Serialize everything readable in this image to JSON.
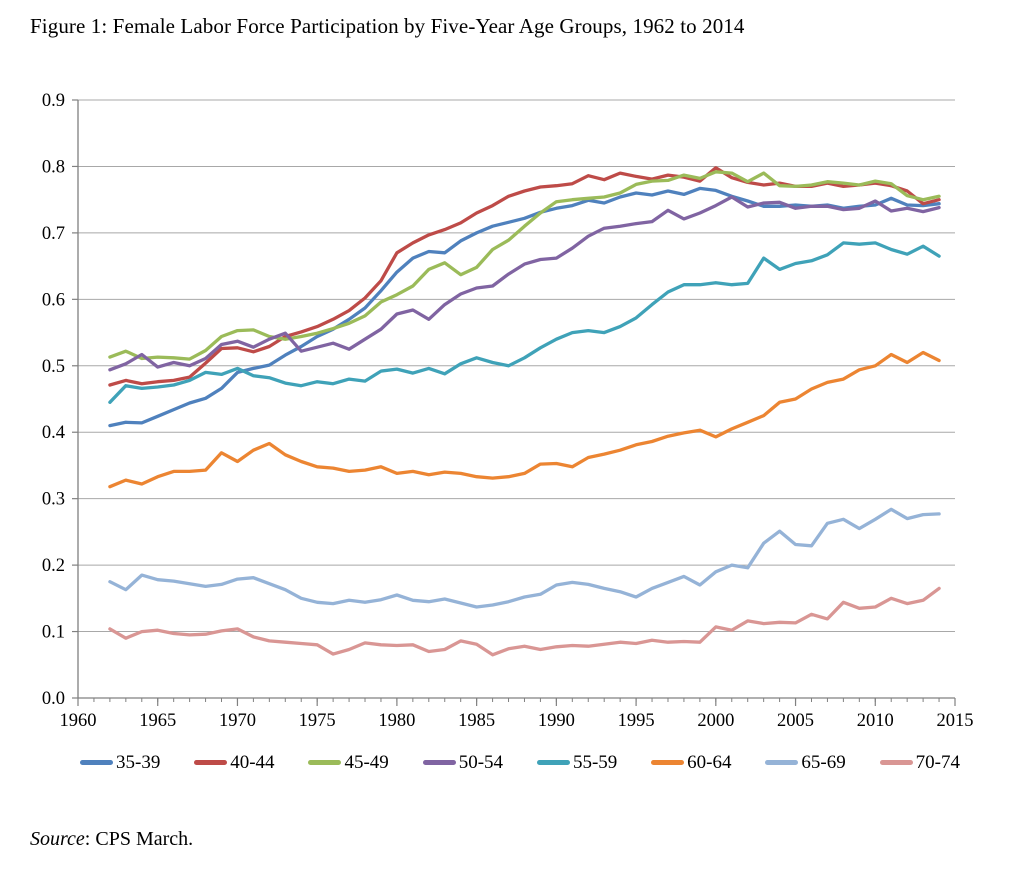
{
  "title": "Figure 1: Female Labor Force Participation by Five-Year Age Groups, 1962 to 2014",
  "source": {
    "italic": "Source",
    "rest": ": CPS March."
  },
  "chart_data": {
    "type": "line",
    "title": "Figure 1: Female Labor Force Participation by Five-Year Age Groups, 1962 to 2014",
    "xlabel": "",
    "ylabel": "",
    "xlim": [
      1960,
      2015
    ],
    "ylim": [
      0.0,
      0.9
    ],
    "x_major_ticks": [
      1960,
      1965,
      1970,
      1975,
      1980,
      1985,
      1990,
      1995,
      2000,
      2005,
      2010,
      2015
    ],
    "x_tick_labels": [
      "1960",
      "1965",
      "1970",
      "1975",
      "1980",
      "1985",
      "1990",
      "1995",
      "2000",
      "2005",
      "2010",
      "2015"
    ],
    "x_minor_tick_step": 1,
    "y_ticks": [
      0.0,
      0.1,
      0.2,
      0.3,
      0.4,
      0.5,
      0.6,
      0.7,
      0.8,
      0.9
    ],
    "y_tick_labels": [
      "0.0",
      "0.1",
      "0.2",
      "0.3",
      "0.4",
      "0.5",
      "0.6",
      "0.7",
      "0.8",
      "0.9"
    ],
    "grid": true,
    "legend_position": "bottom",
    "grid_color": "#A8A8A8",
    "axis_color": "#808080",
    "x": [
      1962,
      1963,
      1964,
      1965,
      1966,
      1967,
      1968,
      1969,
      1970,
      1971,
      1972,
      1973,
      1974,
      1975,
      1976,
      1977,
      1978,
      1979,
      1980,
      1981,
      1982,
      1983,
      1984,
      1985,
      1986,
      1987,
      1988,
      1989,
      1990,
      1991,
      1992,
      1993,
      1994,
      1995,
      1996,
      1997,
      1998,
      1999,
      2000,
      2001,
      2002,
      2003,
      2004,
      2005,
      2006,
      2007,
      2008,
      2009,
      2010,
      2011,
      2012,
      2013,
      2014
    ],
    "series": [
      {
        "name": "35-39",
        "color": "#4F81BD",
        "values": [
          0.41,
          0.415,
          0.414,
          0.424,
          0.434,
          0.444,
          0.451,
          0.466,
          0.49,
          0.496,
          0.501,
          0.516,
          0.529,
          0.544,
          0.555,
          0.57,
          0.587,
          0.613,
          0.641,
          0.662,
          0.672,
          0.67,
          0.688,
          0.7,
          0.71,
          0.716,
          0.722,
          0.731,
          0.737,
          0.741,
          0.749,
          0.745,
          0.754,
          0.76,
          0.757,
          0.763,
          0.758,
          0.767,
          0.764,
          0.755,
          0.748,
          0.74,
          0.74,
          0.742,
          0.74,
          0.742,
          0.737,
          0.74,
          0.742,
          0.752,
          0.742,
          0.741,
          0.744
        ]
      },
      {
        "name": "40-44",
        "color": "#BE4B48",
        "values": [
          0.471,
          0.478,
          0.473,
          0.476,
          0.478,
          0.483,
          0.504,
          0.526,
          0.527,
          0.521,
          0.529,
          0.544,
          0.551,
          0.559,
          0.57,
          0.583,
          0.602,
          0.628,
          0.67,
          0.685,
          0.697,
          0.705,
          0.715,
          0.73,
          0.741,
          0.755,
          0.763,
          0.769,
          0.771,
          0.774,
          0.786,
          0.78,
          0.79,
          0.785,
          0.781,
          0.787,
          0.784,
          0.778,
          0.798,
          0.783,
          0.776,
          0.772,
          0.775,
          0.77,
          0.77,
          0.775,
          0.77,
          0.772,
          0.775,
          0.771,
          0.763,
          0.744,
          0.75
        ]
      },
      {
        "name": "45-49",
        "color": "#9BBB59",
        "values": [
          0.513,
          0.522,
          0.511,
          0.513,
          0.512,
          0.51,
          0.523,
          0.544,
          0.553,
          0.554,
          0.544,
          0.54,
          0.544,
          0.549,
          0.556,
          0.564,
          0.575,
          0.596,
          0.607,
          0.62,
          0.645,
          0.655,
          0.637,
          0.648,
          0.675,
          0.689,
          0.71,
          0.73,
          0.747,
          0.75,
          0.752,
          0.754,
          0.76,
          0.773,
          0.778,
          0.779,
          0.787,
          0.782,
          0.792,
          0.79,
          0.777,
          0.79,
          0.771,
          0.77,
          0.772,
          0.777,
          0.775,
          0.772,
          0.778,
          0.774,
          0.756,
          0.75,
          0.755
        ]
      },
      {
        "name": "50-54",
        "color": "#8064A2",
        "values": [
          0.494,
          0.503,
          0.517,
          0.498,
          0.505,
          0.5,
          0.511,
          0.532,
          0.537,
          0.528,
          0.54,
          0.549,
          0.522,
          0.528,
          0.534,
          0.525,
          0.54,
          0.555,
          0.578,
          0.584,
          0.57,
          0.592,
          0.608,
          0.617,
          0.62,
          0.638,
          0.653,
          0.66,
          0.662,
          0.677,
          0.695,
          0.707,
          0.71,
          0.714,
          0.717,
          0.734,
          0.721,
          0.73,
          0.741,
          0.754,
          0.739,
          0.745,
          0.746,
          0.737,
          0.74,
          0.74,
          0.735,
          0.737,
          0.748,
          0.733,
          0.737,
          0.732,
          0.738
        ]
      },
      {
        "name": "55-59",
        "color": "#3FA2B8",
        "values": [
          0.445,
          0.47,
          0.466,
          0.468,
          0.471,
          0.478,
          0.49,
          0.487,
          0.496,
          0.485,
          0.482,
          0.474,
          0.47,
          0.476,
          0.473,
          0.48,
          0.477,
          0.492,
          0.495,
          0.489,
          0.496,
          0.488,
          0.503,
          0.512,
          0.505,
          0.5,
          0.512,
          0.527,
          0.54,
          0.55,
          0.553,
          0.55,
          0.559,
          0.572,
          0.592,
          0.611,
          0.622,
          0.622,
          0.625,
          0.622,
          0.624,
          0.662,
          0.645,
          0.654,
          0.658,
          0.667,
          0.685,
          0.683,
          0.685,
          0.675,
          0.668,
          0.68,
          0.665
        ]
      },
      {
        "name": "60-64",
        "color": "#EC8532",
        "values": [
          0.318,
          0.328,
          0.322,
          0.333,
          0.341,
          0.341,
          0.343,
          0.369,
          0.356,
          0.373,
          0.383,
          0.366,
          0.356,
          0.348,
          0.346,
          0.341,
          0.343,
          0.348,
          0.338,
          0.341,
          0.336,
          0.34,
          0.338,
          0.333,
          0.331,
          0.333,
          0.338,
          0.352,
          0.353,
          0.348,
          0.362,
          0.367,
          0.373,
          0.381,
          0.386,
          0.394,
          0.399,
          0.403,
          0.393,
          0.405,
          0.415,
          0.425,
          0.445,
          0.45,
          0.465,
          0.475,
          0.48,
          0.494,
          0.5,
          0.517,
          0.505,
          0.52,
          0.508
        ]
      },
      {
        "name": "65-69",
        "color": "#95B3D7",
        "values": [
          0.175,
          0.163,
          0.185,
          0.178,
          0.176,
          0.172,
          0.168,
          0.171,
          0.179,
          0.181,
          0.172,
          0.163,
          0.15,
          0.144,
          0.142,
          0.147,
          0.144,
          0.148,
          0.155,
          0.147,
          0.145,
          0.149,
          0.143,
          0.137,
          0.14,
          0.145,
          0.152,
          0.156,
          0.17,
          0.174,
          0.171,
          0.165,
          0.16,
          0.152,
          0.165,
          0.174,
          0.183,
          0.17,
          0.19,
          0.2,
          0.196,
          0.233,
          0.251,
          0.231,
          0.229,
          0.263,
          0.269,
          0.255,
          0.269,
          0.284,
          0.27,
          0.276,
          0.277
        ]
      },
      {
        "name": "70-74",
        "color": "#D99694",
        "values": [
          0.104,
          0.09,
          0.1,
          0.102,
          0.097,
          0.095,
          0.096,
          0.101,
          0.104,
          0.092,
          0.086,
          0.084,
          0.082,
          0.08,
          0.066,
          0.073,
          0.083,
          0.08,
          0.079,
          0.08,
          0.07,
          0.073,
          0.086,
          0.081,
          0.065,
          0.074,
          0.078,
          0.073,
          0.077,
          0.079,
          0.078,
          0.081,
          0.084,
          0.082,
          0.087,
          0.084,
          0.085,
          0.084,
          0.107,
          0.102,
          0.116,
          0.112,
          0.114,
          0.113,
          0.126,
          0.119,
          0.144,
          0.135,
          0.137,
          0.15,
          0.142,
          0.147,
          0.165
        ]
      }
    ]
  }
}
